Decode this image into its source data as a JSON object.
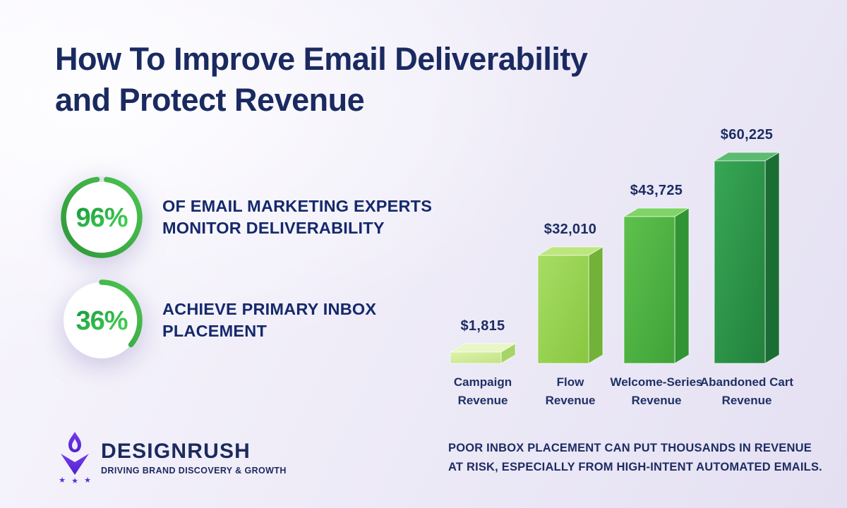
{
  "page": {
    "title_lines": [
      "How To Improve Email Deliverability",
      "and Protect Revenue"
    ]
  },
  "stats": [
    {
      "value_label": "96%",
      "percent": 96,
      "description": "OF EMAIL MARKETING EXPERTS MONITOR DELIVERABILITY"
    },
    {
      "value_label": "36%",
      "percent": 36,
      "description": "ACHIEVE PRIMARY INBOX PLACEMENT"
    }
  ],
  "chart_data": {
    "type": "bar",
    "style": "3d-extruded",
    "title": "",
    "xlabel": "",
    "ylabel": "",
    "categories": [
      "Campaign Revenue",
      "Flow Revenue",
      "Welcome-Series Revenue",
      "Abandoned Cart Revenue"
    ],
    "values": [
      1815,
      32010,
      43725,
      60225
    ],
    "value_labels": [
      "$1,815",
      "$32,010",
      "$43,725",
      "$60,225"
    ],
    "ylim": [
      0,
      60225
    ],
    "grid": false,
    "legend": false,
    "bar_colors": [
      {
        "front_top": "#ddf2ac",
        "front_bottom": "#c2e384",
        "top": "#e8f7c5",
        "side": "#a5d467"
      },
      {
        "front_top": "#a6dd64",
        "front_bottom": "#88c740",
        "top": "#bde67f",
        "side": "#72b238"
      },
      {
        "front_top": "#5ec14c",
        "front_bottom": "#3ea239",
        "top": "#7ed466",
        "side": "#319434"
      },
      {
        "front_top": "#37a755",
        "front_bottom": "#22813c",
        "top": "#5cbb71",
        "side": "#1b6e33"
      }
    ]
  },
  "footer": {
    "logo_text": "DESIGNRUSH",
    "logo_tagline": "DRIVING BRAND DISCOVERY & GROWTH",
    "note_lines": [
      "POOR INBOX PLACEMENT CAN PUT THOUSANDS IN REVENUE",
      "AT RISK, ESPECIALLY FROM HIGH-INTENT AUTOMATED EMAILS."
    ]
  },
  "colors": {
    "background_light": "#f8f6fd",
    "background_dark": "#e4e0f2",
    "heading_navy": "#1a2a61",
    "body_navy": "#1d2d63",
    "ring_green_start": "#2e9738",
    "ring_green_end": "#4cc452",
    "percent_green_start": "#18973a",
    "percent_green_end": "#47d957",
    "logo_purple_start": "#7a3bf0",
    "logo_purple_end": "#4c22cd"
  }
}
